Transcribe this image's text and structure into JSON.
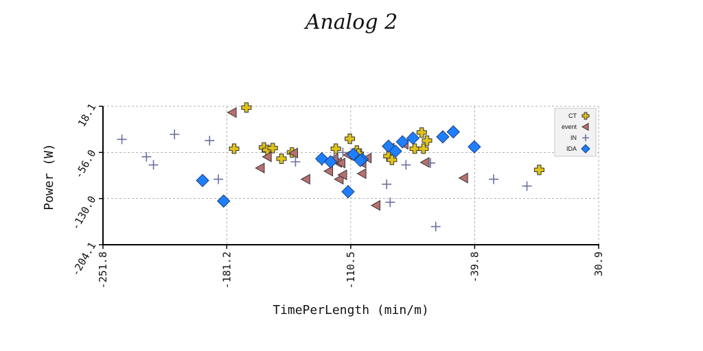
{
  "chart_data": {
    "type": "scatter",
    "title": "Analog 2",
    "xlabel": "TimePerLength (min/m)",
    "ylabel": "Power (W)",
    "xlim": [
      -251.8,
      30.9
    ],
    "ylim": [
      -204.1,
      18.1
    ],
    "x_ticks": [
      "-251.8",
      "-181.2",
      "-110.5",
      "-39.8",
      "30.9"
    ],
    "y_ticks": [
      "-204.1",
      "-130.0",
      "-56.0",
      "18.1"
    ],
    "grid": true,
    "legend_position": "top-right",
    "series": [
      {
        "name": "CT",
        "marker": "bold-plus",
        "color": "#e0c21a",
        "x": [
          -170,
          -177,
          -160,
          -150,
          -158,
          -155,
          -144,
          -111,
          -107,
          -106,
          -119,
          -89,
          -87,
          -74,
          -69,
          -70,
          -67,
          -3
        ],
        "y": [
          16,
          -50,
          -48,
          -66,
          -52,
          -49,
          -56,
          -34,
          -53,
          -58,
          -50,
          -62,
          -68,
          -50,
          -50,
          -24,
          -37,
          -84
        ]
      },
      {
        "name": "event",
        "marker": "triangle-left",
        "color": "#b87070",
        "x": [
          -178,
          -158,
          -162,
          -143,
          -136,
          -123,
          -117,
          -115,
          -112,
          -104,
          -101,
          -80,
          -104,
          -88,
          -118,
          -116,
          -96,
          -120,
          -68,
          -46
        ],
        "y": [
          8,
          -63,
          -81,
          -57,
          -99,
          -86,
          -99,
          -92,
          -60,
          -90,
          -65,
          -43,
          -73,
          -49,
          -72,
          -73,
          -141,
          -66,
          -72,
          -97
        ]
      },
      {
        "name": "IN",
        "marker": "plus",
        "color": "#6a6fa0",
        "x": [
          -241,
          -227,
          -223,
          -211,
          -191,
          -186,
          -142,
          -127,
          -120,
          -104,
          -90,
          -88,
          -79,
          -62,
          -65,
          -29,
          -10,
          -108,
          -115
        ],
        "y": [
          -35,
          -63,
          -76,
          -27,
          -37,
          -99,
          -71,
          -70,
          -64,
          -62,
          -107,
          -136,
          -76,
          -175,
          -73,
          -99,
          -110,
          -62,
          -56
        ]
      },
      {
        "name": "IDA",
        "marker": "diamond",
        "color": "#1f7fff",
        "x": [
          -195,
          -183,
          -127,
          -122,
          -109,
          -104,
          -89,
          -81,
          -85,
          -75,
          -58,
          -52,
          -40,
          -112,
          -105
        ],
        "y": [
          -101,
          -134,
          -66,
          -71,
          -59,
          -67,
          -46,
          -39,
          -54,
          -33,
          -31,
          -23,
          -47,
          -119,
          -69
        ]
      }
    ]
  }
}
